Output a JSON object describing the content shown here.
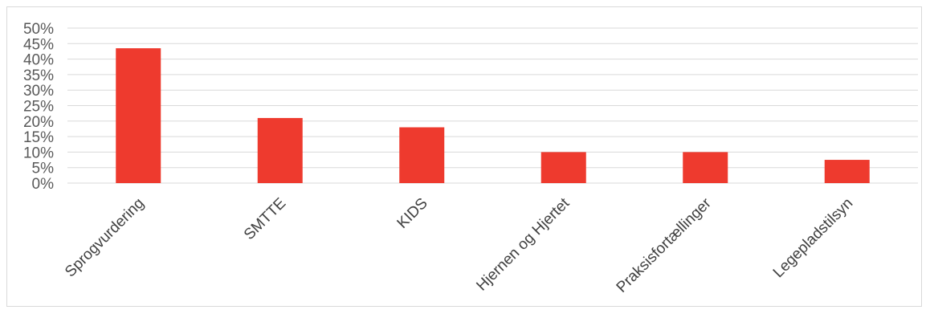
{
  "chart_data": {
    "type": "bar",
    "categories": [
      "Sprogvurdering",
      "SMTTE",
      "KIDS",
      "Hjernen og Hjertet",
      "Praksisfortællinger",
      "Legepladstilsyn"
    ],
    "values": [
      43.5,
      21,
      18,
      10,
      10,
      7.5
    ],
    "ylim": [
      0,
      50
    ],
    "yticks": [
      0,
      5,
      10,
      15,
      20,
      25,
      30,
      35,
      40,
      45,
      50
    ],
    "ytick_labels": [
      "0%",
      "5%",
      "10%",
      "15%",
      "20%",
      "25%",
      "30%",
      "35%",
      "40%",
      "45%",
      "50%"
    ],
    "bar_color": "#ee3a2e",
    "grid": true,
    "legend": "none",
    "title": "",
    "xlabel": "",
    "ylabel": ""
  }
}
